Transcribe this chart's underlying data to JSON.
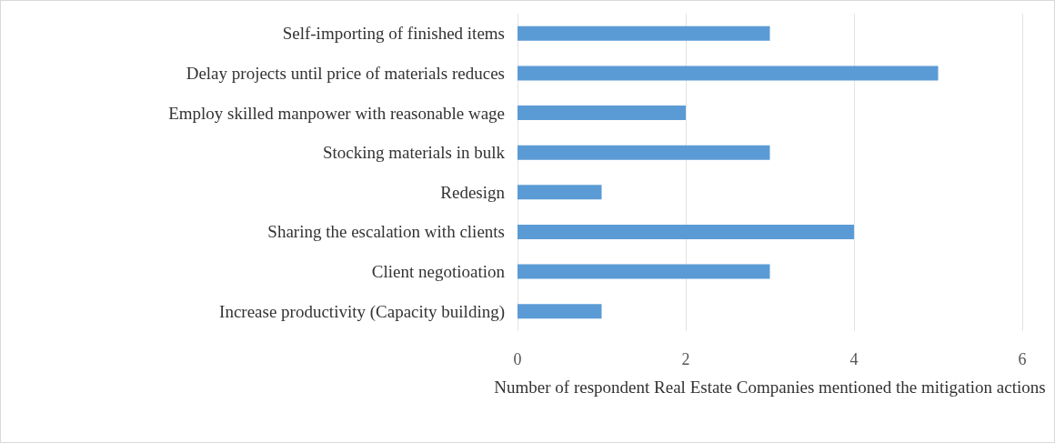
{
  "chart_data": {
    "type": "bar",
    "orientation": "horizontal",
    "xlabel": "Number of respondent Real Estate Companies mentioned the mitigation actions",
    "categories": [
      "Self-importing of finished items",
      "Delay projects until price of materials reduces",
      "Employ skilled manpower with reasonable wage",
      "Stocking materials in bulk",
      "Redesign",
      "Sharing the escalation with clients",
      "Client negotioation",
      "Increase productivity (Capacity building)"
    ],
    "values": [
      3,
      5,
      2,
      3,
      1,
      4,
      3,
      1
    ],
    "color": "#5b9bd5",
    "xlim": [
      0,
      6
    ],
    "xticks": [
      0,
      2,
      4,
      6
    ],
    "grid": "x"
  }
}
